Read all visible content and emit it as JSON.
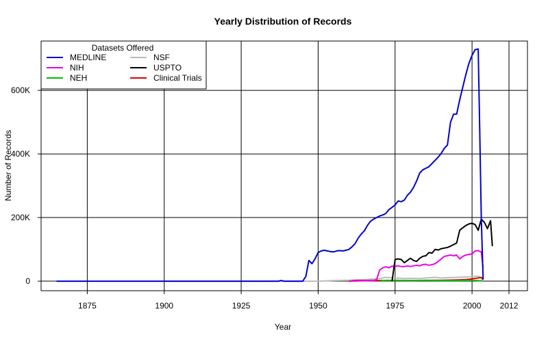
{
  "chart_data": {
    "type": "line",
    "title": "Yearly Distribution of Records",
    "xlabel": "Year",
    "ylabel": "Number of Records",
    "xlim": [
      1860,
      2018
    ],
    "ylim": [
      -30000,
      755000
    ],
    "x_ticks": [
      {
        "value": 1875,
        "label": "1875"
      },
      {
        "value": 1900,
        "label": "1900"
      },
      {
        "value": 1925,
        "label": "1925"
      },
      {
        "value": 1950,
        "label": "1950"
      },
      {
        "value": 1975,
        "label": "1975"
      },
      {
        "value": 2000,
        "label": "2000"
      },
      {
        "value": 2012,
        "label": "2012"
      }
    ],
    "y_ticks": [
      {
        "value": 0,
        "label": "0"
      },
      {
        "value": 200000,
        "label": "200K"
      },
      {
        "value": 400000,
        "label": "400K"
      },
      {
        "value": 600000,
        "label": "600K"
      }
    ],
    "grid_x": [
      1875,
      1900,
      1925,
      1950,
      1975,
      2000,
      2012
    ],
    "grid_y": [
      0,
      200000,
      400000,
      600000
    ],
    "grid": true,
    "legend": {
      "title": "Datasets Offered",
      "placement": "top-left"
    },
    "series": [
      {
        "name": "MEDLINE",
        "color": "#0000cc",
        "points": [
          [
            1865,
            0
          ],
          [
            1899,
            0
          ],
          [
            1937,
            0
          ],
          [
            1938,
            2000
          ],
          [
            1939,
            0
          ],
          [
            1945,
            0
          ],
          [
            1946,
            15000
          ],
          [
            1947,
            65000
          ],
          [
            1948,
            55000
          ],
          [
            1949,
            70000
          ],
          [
            1950,
            90000
          ],
          [
            1951,
            95000
          ],
          [
            1952,
            97000
          ],
          [
            1953,
            95000
          ],
          [
            1954,
            93000
          ],
          [
            1955,
            92000
          ],
          [
            1956,
            95000
          ],
          [
            1957,
            96000
          ],
          [
            1958,
            95000
          ],
          [
            1959,
            97000
          ],
          [
            1960,
            100000
          ],
          [
            1961,
            108000
          ],
          [
            1962,
            118000
          ],
          [
            1963,
            135000
          ],
          [
            1964,
            148000
          ],
          [
            1965,
            158000
          ],
          [
            1966,
            175000
          ],
          [
            1967,
            188000
          ],
          [
            1968,
            195000
          ],
          [
            1969,
            200000
          ],
          [
            1970,
            205000
          ],
          [
            1971,
            208000
          ],
          [
            1972,
            213000
          ],
          [
            1973,
            225000
          ],
          [
            1974,
            232000
          ],
          [
            1975,
            240000
          ],
          [
            1976,
            252000
          ],
          [
            1977,
            250000
          ],
          [
            1978,
            255000
          ],
          [
            1979,
            270000
          ],
          [
            1980,
            280000
          ],
          [
            1981,
            295000
          ],
          [
            1982,
            315000
          ],
          [
            1983,
            340000
          ],
          [
            1984,
            350000
          ],
          [
            1985,
            355000
          ],
          [
            1986,
            360000
          ],
          [
            1987,
            370000
          ],
          [
            1988,
            380000
          ],
          [
            1989,
            390000
          ],
          [
            1990,
            402000
          ],
          [
            1991,
            418000
          ],
          [
            1992,
            428000
          ],
          [
            1993,
            500000
          ],
          [
            1994,
            525000
          ],
          [
            1995,
            525000
          ],
          [
            1996,
            570000
          ],
          [
            1997,
            610000
          ],
          [
            1998,
            650000
          ],
          [
            1999,
            685000
          ],
          [
            2000,
            710000
          ],
          [
            2001,
            728000
          ],
          [
            2002,
            730000
          ],
          [
            2002.5,
            480000
          ],
          [
            2003,
            200000
          ],
          [
            2003.6,
            5000
          ]
        ]
      },
      {
        "name": "NIH",
        "color": "#ee00ee",
        "points": [
          [
            1960,
            0
          ],
          [
            1968,
            2000
          ],
          [
            1969,
            5000
          ],
          [
            1970,
            35000
          ],
          [
            1971,
            42000
          ],
          [
            1972,
            45000
          ],
          [
            1973,
            42000
          ],
          [
            1974,
            47000
          ],
          [
            1975,
            47000
          ],
          [
            1976,
            48000
          ],
          [
            1977,
            46000
          ],
          [
            1978,
            46000
          ],
          [
            1979,
            48000
          ],
          [
            1980,
            46000
          ],
          [
            1981,
            48000
          ],
          [
            1982,
            50000
          ],
          [
            1983,
            48000
          ],
          [
            1984,
            52000
          ],
          [
            1985,
            53000
          ],
          [
            1986,
            50000
          ],
          [
            1987,
            52000
          ],
          [
            1988,
            55000
          ],
          [
            1989,
            62000
          ],
          [
            1990,
            70000
          ],
          [
            1991,
            78000
          ],
          [
            1992,
            80000
          ],
          [
            1993,
            82000
          ],
          [
            1994,
            80000
          ],
          [
            1995,
            82000
          ],
          [
            1996,
            70000
          ],
          [
            1997,
            78000
          ],
          [
            1998,
            82000
          ],
          [
            1999,
            84000
          ],
          [
            2000,
            86000
          ],
          [
            2001,
            95000
          ],
          [
            2002,
            96000
          ],
          [
            2003,
            92000
          ],
          [
            2003.6,
            40000
          ]
        ]
      },
      {
        "name": "NEH",
        "color": "#00bb00",
        "points": [
          [
            1970,
            0
          ],
          [
            1972,
            2500
          ],
          [
            1975,
            2500
          ],
          [
            1980,
            2000
          ],
          [
            1985,
            2500
          ],
          [
            1990,
            2000
          ],
          [
            1995,
            2000
          ],
          [
            2000,
            2500
          ],
          [
            2003.6,
            1000
          ]
        ]
      },
      {
        "name": "NSF",
        "color": "#bbbbbb",
        "points": [
          [
            1899,
            0
          ],
          [
            1950,
            0
          ],
          [
            1955,
            2000
          ],
          [
            1960,
            3000
          ],
          [
            1965,
            5000
          ],
          [
            1970,
            8000
          ],
          [
            1972,
            12000
          ],
          [
            1975,
            10000
          ],
          [
            1978,
            8000
          ],
          [
            1980,
            9000
          ],
          [
            1983,
            8000
          ],
          [
            1985,
            10000
          ],
          [
            1988,
            12000
          ],
          [
            1990,
            10000
          ],
          [
            1993,
            11000
          ],
          [
            1995,
            12000
          ],
          [
            1998,
            13000
          ],
          [
            2000,
            14000
          ],
          [
            2002,
            16000
          ],
          [
            2003.6,
            5000
          ]
        ]
      },
      {
        "name": "USPTO",
        "color": "#000000",
        "points": [
          [
            1974,
            0
          ],
          [
            1975,
            68000
          ],
          [
            1976,
            70000
          ],
          [
            1977,
            68000
          ],
          [
            1978,
            58000
          ],
          [
            1979,
            65000
          ],
          [
            1980,
            72000
          ],
          [
            1981,
            65000
          ],
          [
            1982,
            62000
          ],
          [
            1983,
            72000
          ],
          [
            1984,
            78000
          ],
          [
            1985,
            80000
          ],
          [
            1986,
            90000
          ],
          [
            1987,
            88000
          ],
          [
            1988,
            100000
          ],
          [
            1989,
            98000
          ],
          [
            1990,
            102000
          ],
          [
            1991,
            104000
          ],
          [
            1992,
            106000
          ],
          [
            1993,
            110000
          ],
          [
            1994,
            115000
          ],
          [
            1995,
            120000
          ],
          [
            1996,
            160000
          ],
          [
            1997,
            168000
          ],
          [
            1998,
            175000
          ],
          [
            1999,
            180000
          ],
          [
            2000,
            182000
          ],
          [
            2001,
            178000
          ],
          [
            2002,
            160000
          ],
          [
            2003,
            195000
          ],
          [
            2004,
            185000
          ],
          [
            2005,
            165000
          ],
          [
            2006,
            190000
          ],
          [
            2006.6,
            110000
          ]
        ]
      },
      {
        "name": "Clinical Trials",
        "color": "#dd0000",
        "points": [
          [
            1960,
            0
          ],
          [
            1962,
            2000
          ],
          [
            1970,
            2000
          ],
          [
            1980,
            2000
          ],
          [
            1990,
            3000
          ],
          [
            1995,
            4000
          ],
          [
            1998,
            5000
          ],
          [
            2000,
            7000
          ],
          [
            2002,
            10000
          ],
          [
            2003,
            12000
          ],
          [
            2003.6,
            5000
          ]
        ]
      }
    ]
  }
}
